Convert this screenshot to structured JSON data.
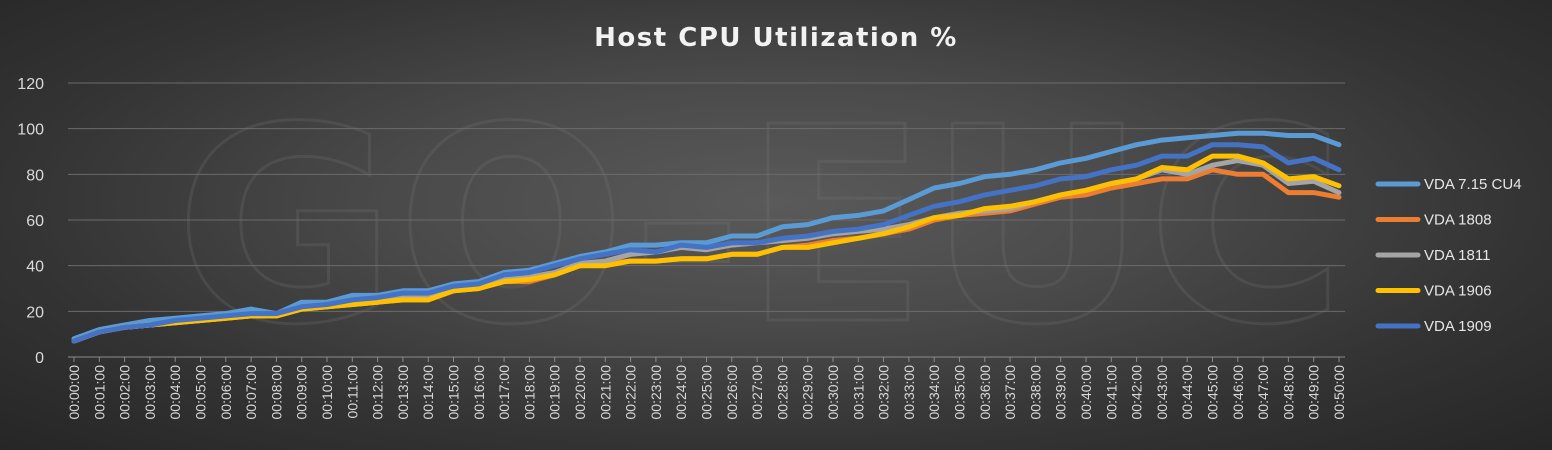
{
  "watermark": "GO-EUC",
  "chart_data": {
    "type": "line",
    "title": "Host CPU Utilization %",
    "xlabel": "",
    "ylabel": "",
    "ylim": [
      0,
      120
    ],
    "yticks": [
      0,
      20,
      40,
      60,
      80,
      100,
      120
    ],
    "grid": true,
    "legend_position": "right",
    "x": [
      "00:00:00",
      "00:01:00",
      "00:02:00",
      "00:03:00",
      "00:04:00",
      "00:05:00",
      "00:06:00",
      "00:07:00",
      "00:08:00",
      "00:09:00",
      "00:10:00",
      "00:11:00",
      "00:12:00",
      "00:13:00",
      "00:14:00",
      "00:15:00",
      "00:16:00",
      "00:17:00",
      "00:18:00",
      "00:19:00",
      "00:20:00",
      "00:21:00",
      "00:22:00",
      "00:23:00",
      "00:24:00",
      "00:25:00",
      "00:26:00",
      "00:27:00",
      "00:28:00",
      "00:29:00",
      "00:30:00",
      "00:31:00",
      "00:32:00",
      "00:33:00",
      "00:34:00",
      "00:35:00",
      "00:36:00",
      "00:37:00",
      "00:38:00",
      "00:39:00",
      "00:40:00",
      "00:41:00",
      "00:42:00",
      "00:43:00",
      "00:44:00",
      "00:45:00",
      "00:46:00",
      "00:47:00",
      "00:48:00",
      "00:49:00",
      "00:50:00"
    ],
    "series": [
      {
        "name": "VDA 7.15 CU4",
        "color": "#5b9bd5",
        "values": [
          8,
          12,
          14,
          16,
          17,
          18,
          19,
          21,
          19,
          24,
          24,
          27,
          27,
          29,
          29,
          32,
          33,
          37,
          38,
          41,
          44,
          46,
          49,
          49,
          50,
          50,
          53,
          53,
          57,
          58,
          61,
          62,
          64,
          69,
          74,
          76,
          79,
          80,
          82,
          85,
          87,
          90,
          93,
          95,
          96,
          97,
          98,
          98,
          97,
          97,
          93
        ]
      },
      {
        "name": "VDA 1808",
        "color": "#ed7d31",
        "values": [
          7,
          11,
          13,
          14,
          15,
          16,
          17,
          18,
          18,
          21,
          22,
          23,
          24,
          25,
          25,
          29,
          30,
          33,
          33,
          36,
          40,
          41,
          42,
          42,
          43,
          43,
          45,
          45,
          48,
          49,
          51,
          52,
          54,
          56,
          60,
          62,
          63,
          64,
          67,
          70,
          71,
          74,
          76,
          78,
          78,
          82,
          80,
          80,
          72,
          72,
          70
        ]
      },
      {
        "name": "VDA 1811",
        "color": "#a5a5a5",
        "values": [
          7,
          11,
          13,
          14,
          15,
          16,
          17,
          18,
          18,
          21,
          22,
          23,
          24,
          26,
          26,
          29,
          30,
          34,
          35,
          37,
          41,
          42,
          45,
          46,
          48,
          47,
          49,
          50,
          51,
          52,
          54,
          55,
          56,
          58,
          61,
          63,
          64,
          65,
          68,
          71,
          73,
          76,
          78,
          82,
          80,
          84,
          86,
          84,
          76,
          77,
          72
        ]
      },
      {
        "name": "VDA 1906",
        "color": "#ffc000",
        "values": [
          7,
          11,
          13,
          14,
          15,
          16,
          17,
          18,
          18,
          21,
          22,
          23,
          24,
          25,
          25,
          29,
          30,
          33,
          34,
          36,
          40,
          40,
          42,
          42,
          43,
          43,
          45,
          45,
          48,
          48,
          50,
          52,
          54,
          57,
          61,
          62,
          65,
          66,
          68,
          71,
          73,
          76,
          78,
          83,
          82,
          88,
          88,
          85,
          78,
          79,
          75
        ]
      },
      {
        "name": "VDA 1909",
        "color": "#4472c4",
        "values": [
          7,
          11,
          13,
          14,
          16,
          17,
          18,
          19,
          19,
          22,
          23,
          25,
          26,
          28,
          28,
          31,
          32,
          36,
          37,
          40,
          43,
          45,
          47,
          46,
          49,
          48,
          50,
          50,
          52,
          53,
          55,
          56,
          58,
          62,
          66,
          68,
          71,
          73,
          75,
          78,
          79,
          82,
          84,
          88,
          88,
          93,
          93,
          92,
          85,
          87,
          82
        ]
      }
    ]
  }
}
